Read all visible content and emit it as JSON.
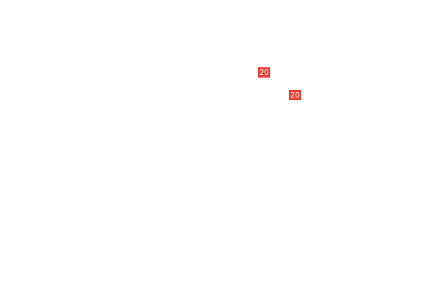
{
  "badges": [
    {
      "label": "20",
      "color": "#ea4335"
    },
    {
      "label": "20",
      "color": "#ea4335"
    }
  ]
}
